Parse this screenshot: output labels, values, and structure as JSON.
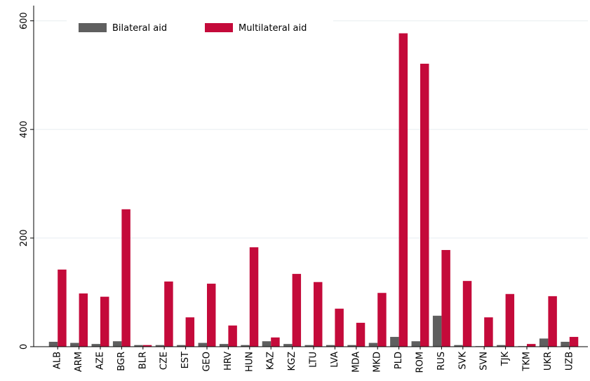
{
  "chart_data": {
    "type": "bar",
    "categories": [
      "ALB",
      "ARM",
      "AZE",
      "BGR",
      "BLR",
      "CZE",
      "EST",
      "GEO",
      "HRV",
      "HUN",
      "KAZ",
      "KGZ",
      "LTU",
      "LVA",
      "MDA",
      "MKD",
      "PLD",
      "ROM",
      "RUS",
      "SVK",
      "SVN",
      "TJK",
      "TKM",
      "UKR",
      "UZB"
    ],
    "series": [
      {
        "name": "Bilateral aid",
        "color": "#5f5f5f",
        "values": [
          9,
          7,
          5,
          10,
          3,
          3,
          3,
          7,
          5,
          3,
          10,
          5,
          3,
          3,
          3,
          7,
          18,
          10,
          57,
          3,
          1,
          3,
          1,
          15,
          9
        ]
      },
      {
        "name": "Multilateral aid",
        "color": "#c40a3a",
        "values": [
          142,
          98,
          92,
          253,
          3,
          120,
          54,
          116,
          39,
          183,
          17,
          134,
          119,
          70,
          44,
          99,
          577,
          521,
          178,
          121,
          54,
          97,
          5,
          93,
          18
        ]
      }
    ],
    "ylim": [
      0,
      628
    ],
    "yticks": [
      0,
      200,
      400,
      600
    ],
    "grid": true,
    "legend": "top"
  }
}
